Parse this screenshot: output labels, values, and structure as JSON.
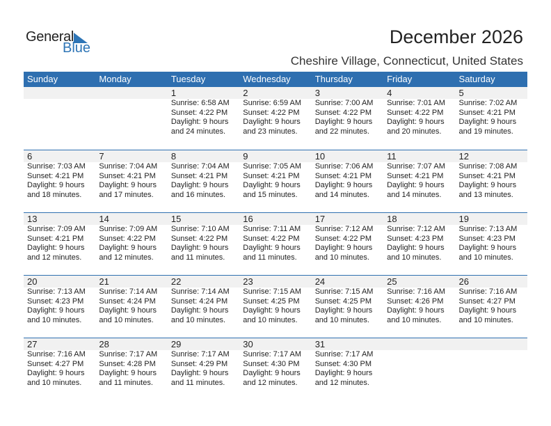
{
  "logo": {
    "word1": "General",
    "word2": "Blue"
  },
  "header": {
    "title": "December 2026",
    "location": "Cheshire Village, Connecticut, United States"
  },
  "colors": {
    "accent": "#2e6fb0",
    "band": "#f1f1f1"
  },
  "days": [
    "Sunday",
    "Monday",
    "Tuesday",
    "Wednesday",
    "Thursday",
    "Friday",
    "Saturday"
  ],
  "weeks": [
    [
      null,
      null,
      {
        "day": "1",
        "sunrise": "Sunrise: 6:58 AM",
        "sunset": "Sunset: 4:22 PM",
        "daylight1": "Daylight: 9 hours",
        "daylight2": "and 24 minutes."
      },
      {
        "day": "2",
        "sunrise": "Sunrise: 6:59 AM",
        "sunset": "Sunset: 4:22 PM",
        "daylight1": "Daylight: 9 hours",
        "daylight2": "and 23 minutes."
      },
      {
        "day": "3",
        "sunrise": "Sunrise: 7:00 AM",
        "sunset": "Sunset: 4:22 PM",
        "daylight1": "Daylight: 9 hours",
        "daylight2": "and 22 minutes."
      },
      {
        "day": "4",
        "sunrise": "Sunrise: 7:01 AM",
        "sunset": "Sunset: 4:22 PM",
        "daylight1": "Daylight: 9 hours",
        "daylight2": "and 20 minutes."
      },
      {
        "day": "5",
        "sunrise": "Sunrise: 7:02 AM",
        "sunset": "Sunset: 4:21 PM",
        "daylight1": "Daylight: 9 hours",
        "daylight2": "and 19 minutes."
      }
    ],
    [
      {
        "day": "6",
        "sunrise": "Sunrise: 7:03 AM",
        "sunset": "Sunset: 4:21 PM",
        "daylight1": "Daylight: 9 hours",
        "daylight2": "and 18 minutes."
      },
      {
        "day": "7",
        "sunrise": "Sunrise: 7:04 AM",
        "sunset": "Sunset: 4:21 PM",
        "daylight1": "Daylight: 9 hours",
        "daylight2": "and 17 minutes."
      },
      {
        "day": "8",
        "sunrise": "Sunrise: 7:04 AM",
        "sunset": "Sunset: 4:21 PM",
        "daylight1": "Daylight: 9 hours",
        "daylight2": "and 16 minutes."
      },
      {
        "day": "9",
        "sunrise": "Sunrise: 7:05 AM",
        "sunset": "Sunset: 4:21 PM",
        "daylight1": "Daylight: 9 hours",
        "daylight2": "and 15 minutes."
      },
      {
        "day": "10",
        "sunrise": "Sunrise: 7:06 AM",
        "sunset": "Sunset: 4:21 PM",
        "daylight1": "Daylight: 9 hours",
        "daylight2": "and 14 minutes."
      },
      {
        "day": "11",
        "sunrise": "Sunrise: 7:07 AM",
        "sunset": "Sunset: 4:21 PM",
        "daylight1": "Daylight: 9 hours",
        "daylight2": "and 14 minutes."
      },
      {
        "day": "12",
        "sunrise": "Sunrise: 7:08 AM",
        "sunset": "Sunset: 4:21 PM",
        "daylight1": "Daylight: 9 hours",
        "daylight2": "and 13 minutes."
      }
    ],
    [
      {
        "day": "13",
        "sunrise": "Sunrise: 7:09 AM",
        "sunset": "Sunset: 4:21 PM",
        "daylight1": "Daylight: 9 hours",
        "daylight2": "and 12 minutes."
      },
      {
        "day": "14",
        "sunrise": "Sunrise: 7:09 AM",
        "sunset": "Sunset: 4:22 PM",
        "daylight1": "Daylight: 9 hours",
        "daylight2": "and 12 minutes."
      },
      {
        "day": "15",
        "sunrise": "Sunrise: 7:10 AM",
        "sunset": "Sunset: 4:22 PM",
        "daylight1": "Daylight: 9 hours",
        "daylight2": "and 11 minutes."
      },
      {
        "day": "16",
        "sunrise": "Sunrise: 7:11 AM",
        "sunset": "Sunset: 4:22 PM",
        "daylight1": "Daylight: 9 hours",
        "daylight2": "and 11 minutes."
      },
      {
        "day": "17",
        "sunrise": "Sunrise: 7:12 AM",
        "sunset": "Sunset: 4:22 PM",
        "daylight1": "Daylight: 9 hours",
        "daylight2": "and 10 minutes."
      },
      {
        "day": "18",
        "sunrise": "Sunrise: 7:12 AM",
        "sunset": "Sunset: 4:23 PM",
        "daylight1": "Daylight: 9 hours",
        "daylight2": "and 10 minutes."
      },
      {
        "day": "19",
        "sunrise": "Sunrise: 7:13 AM",
        "sunset": "Sunset: 4:23 PM",
        "daylight1": "Daylight: 9 hours",
        "daylight2": "and 10 minutes."
      }
    ],
    [
      {
        "day": "20",
        "sunrise": "Sunrise: 7:13 AM",
        "sunset": "Sunset: 4:23 PM",
        "daylight1": "Daylight: 9 hours",
        "daylight2": "and 10 minutes."
      },
      {
        "day": "21",
        "sunrise": "Sunrise: 7:14 AM",
        "sunset": "Sunset: 4:24 PM",
        "daylight1": "Daylight: 9 hours",
        "daylight2": "and 10 minutes."
      },
      {
        "day": "22",
        "sunrise": "Sunrise: 7:14 AM",
        "sunset": "Sunset: 4:24 PM",
        "daylight1": "Daylight: 9 hours",
        "daylight2": "and 10 minutes."
      },
      {
        "day": "23",
        "sunrise": "Sunrise: 7:15 AM",
        "sunset": "Sunset: 4:25 PM",
        "daylight1": "Daylight: 9 hours",
        "daylight2": "and 10 minutes."
      },
      {
        "day": "24",
        "sunrise": "Sunrise: 7:15 AM",
        "sunset": "Sunset: 4:25 PM",
        "daylight1": "Daylight: 9 hours",
        "daylight2": "and 10 minutes."
      },
      {
        "day": "25",
        "sunrise": "Sunrise: 7:16 AM",
        "sunset": "Sunset: 4:26 PM",
        "daylight1": "Daylight: 9 hours",
        "daylight2": "and 10 minutes."
      },
      {
        "day": "26",
        "sunrise": "Sunrise: 7:16 AM",
        "sunset": "Sunset: 4:27 PM",
        "daylight1": "Daylight: 9 hours",
        "daylight2": "and 10 minutes."
      }
    ],
    [
      {
        "day": "27",
        "sunrise": "Sunrise: 7:16 AM",
        "sunset": "Sunset: 4:27 PM",
        "daylight1": "Daylight: 9 hours",
        "daylight2": "and 10 minutes."
      },
      {
        "day": "28",
        "sunrise": "Sunrise: 7:17 AM",
        "sunset": "Sunset: 4:28 PM",
        "daylight1": "Daylight: 9 hours",
        "daylight2": "and 11 minutes."
      },
      {
        "day": "29",
        "sunrise": "Sunrise: 7:17 AM",
        "sunset": "Sunset: 4:29 PM",
        "daylight1": "Daylight: 9 hours",
        "daylight2": "and 11 minutes."
      },
      {
        "day": "30",
        "sunrise": "Sunrise: 7:17 AM",
        "sunset": "Sunset: 4:30 PM",
        "daylight1": "Daylight: 9 hours",
        "daylight2": "and 12 minutes."
      },
      {
        "day": "31",
        "sunrise": "Sunrise: 7:17 AM",
        "sunset": "Sunset: 4:30 PM",
        "daylight1": "Daylight: 9 hours",
        "daylight2": "and 12 minutes."
      },
      null,
      null
    ]
  ]
}
